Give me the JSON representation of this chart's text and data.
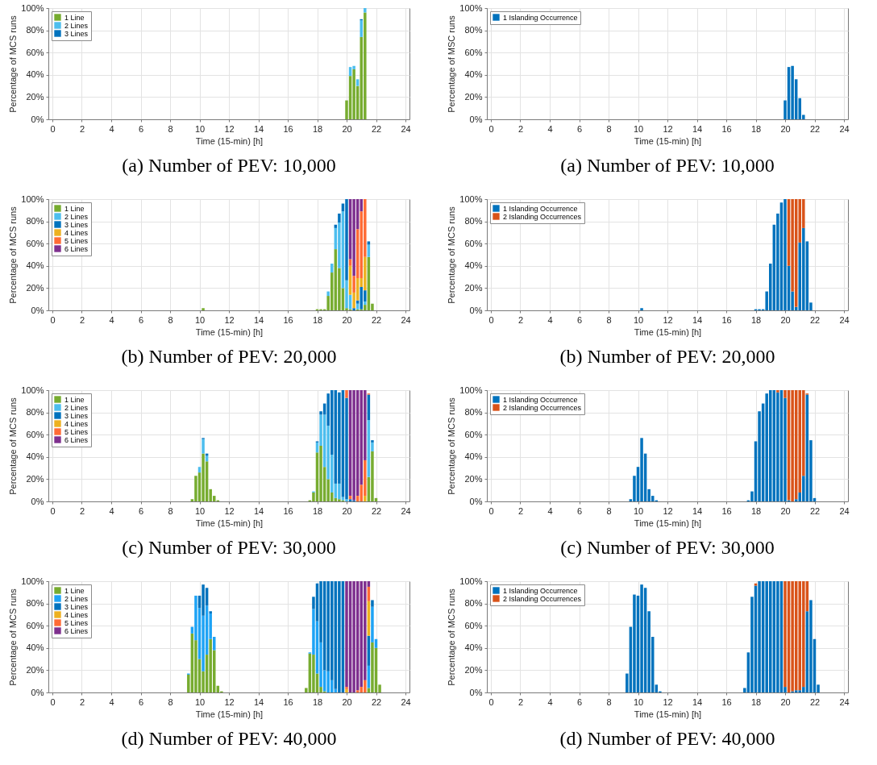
{
  "chart_data": [
    {
      "type": "bar",
      "title": "(a) Number of PEV: 10,000",
      "xlabel": "Time (15-min) [h]",
      "ylabel": "Percentage of MCS runs",
      "stacked": true,
      "grid": true,
      "legend": "top left",
      "xlim": [
        0,
        24
      ],
      "xticks": [
        0,
        2,
        4,
        6,
        8,
        10,
        12,
        14,
        16,
        18,
        20,
        22,
        24
      ],
      "ylim": [
        0,
        100
      ],
      "yticks": [
        {
          "value": 0,
          "label": "0%"
        },
        {
          "value": 20,
          "label": "20%"
        },
        {
          "value": 40,
          "label": "40%"
        },
        {
          "value": 60,
          "label": "60%"
        },
        {
          "value": 80,
          "label": "80%"
        },
        {
          "value": 100,
          "label": "100%"
        }
      ],
      "x": [
        20,
        20.25,
        20.5,
        20.75,
        21,
        21.25
      ],
      "series": [
        {
          "name": "1 Line",
          "color": "#77ac30",
          "values": [
            17,
            39,
            45,
            30,
            74,
            96
          ]
        },
        {
          "name": "2 Lines",
          "color": "#4dbeee",
          "values": [
            null,
            8,
            3,
            6,
            15,
            4
          ]
        },
        {
          "name": "3 Lines",
          "color": "#0072bd",
          "values": [
            null,
            null,
            null,
            null,
            1,
            null
          ]
        }
      ]
    },
    {
      "type": "bar",
      "title": "(a) Number of PEV: 10,000",
      "xlabel": "Time (15-min) [h]",
      "ylabel": "Percentage of MSC runs",
      "stacked": true,
      "grid": true,
      "legend": "top left",
      "xlim": [
        0,
        24
      ],
      "xticks": [
        0,
        2,
        4,
        6,
        8,
        10,
        12,
        14,
        16,
        18,
        20,
        22,
        24
      ],
      "ylim": [
        0,
        100
      ],
      "yticks": [
        {
          "value": 0,
          "label": "0%"
        },
        {
          "value": 20,
          "label": "20%"
        },
        {
          "value": 40,
          "label": "40%"
        },
        {
          "value": 60,
          "label": "60%"
        },
        {
          "value": 80,
          "label": "80%"
        },
        {
          "value": 100,
          "label": "100%"
        }
      ],
      "x": [
        20,
        20.25,
        20.5,
        20.75,
        21,
        21.25
      ],
      "series": [
        {
          "name": "1 Islanding Occurrence",
          "color": "#0072bd",
          "values": [
            17,
            47,
            48,
            36,
            19,
            4
          ]
        }
      ]
    },
    {
      "type": "bar",
      "title": "(b) Number of PEV: 20,000",
      "xlabel": "Time (15-min) [h]",
      "ylabel": "Percentage of MCS runs",
      "stacked": true,
      "grid": true,
      "legend": "top left",
      "xlim": [
        0,
        24
      ],
      "xticks": [
        0,
        2,
        4,
        6,
        8,
        10,
        12,
        14,
        16,
        18,
        20,
        22,
        24
      ],
      "ylim": [
        0,
        100
      ],
      "yticks": [
        {
          "value": 0,
          "label": "0%"
        },
        {
          "value": 20,
          "label": "20%"
        },
        {
          "value": 40,
          "label": "40%"
        },
        {
          "value": 60,
          "label": "60%"
        },
        {
          "value": 80,
          "label": "80%"
        },
        {
          "value": 100,
          "label": "100%"
        }
      ],
      "x": [
        10.25,
        18,
        18.25,
        18.5,
        18.75,
        19,
        19.25,
        19.5,
        19.75,
        20,
        20.25,
        20.5,
        20.75,
        21,
        21.25,
        21.5,
        21.75
      ],
      "series": [
        {
          "name": "1 Line",
          "color": "#77ac30",
          "values": [
            2,
            1,
            1,
            1,
            13,
            34,
            55,
            38,
            20,
            2,
            1,
            null,
            1,
            1,
            5,
            48,
            6
          ]
        },
        {
          "name": "2 Lines",
          "color": "#4dbeee",
          "values": [
            null,
            null,
            null,
            null,
            4,
            8,
            19,
            41,
            69,
            25,
            13,
            null,
            5,
            null,
            3,
            11,
            null
          ]
        },
        {
          "name": "3 Lines",
          "color": "#0072bd",
          "values": [
            null,
            null,
            null,
            null,
            null,
            null,
            3,
            8,
            7,
            73,
            null,
            2,
            3,
            20,
            10,
            3,
            null
          ]
        },
        {
          "name": "4 Lines",
          "color": "#edb120",
          "values": [
            null,
            null,
            null,
            null,
            null,
            null,
            null,
            null,
            null,
            null,
            26,
            14,
            20,
            8,
            30,
            null,
            null
          ]
        },
        {
          "name": "5 Lines",
          "color": "#ff6b35",
          "values": [
            null,
            null,
            null,
            null,
            null,
            null,
            null,
            null,
            null,
            null,
            6,
            15,
            44,
            60,
            52,
            null,
            null
          ]
        },
        {
          "name": "6 Lines",
          "color": "#7e2f8e",
          "values": [
            null,
            null,
            null,
            null,
            null,
            null,
            null,
            null,
            null,
            null,
            54,
            69,
            27,
            11,
            null,
            null,
            null
          ]
        }
      ]
    },
    {
      "type": "bar",
      "title": "(b) Number of PEV: 20,000",
      "xlabel": "Time (15-min) [h]",
      "ylabel": "Percentage of MCS runs",
      "stacked": true,
      "grid": true,
      "legend": "top left",
      "xlim": [
        0,
        24
      ],
      "xticks": [
        0,
        2,
        4,
        6,
        8,
        10,
        12,
        14,
        16,
        18,
        20,
        22,
        24
      ],
      "ylim": [
        0,
        100
      ],
      "yticks": [
        {
          "value": 0,
          "label": "0%"
        },
        {
          "value": 20,
          "label": "20%"
        },
        {
          "value": 40,
          "label": "40%"
        },
        {
          "value": 60,
          "label": "60%"
        },
        {
          "value": 80,
          "label": "80%"
        },
        {
          "value": 100,
          "label": "100%"
        }
      ],
      "x": [
        10.25,
        18,
        18.25,
        18.5,
        18.75,
        19,
        19.25,
        19.5,
        19.75,
        20,
        20.25,
        20.5,
        20.75,
        21,
        21.25,
        21.5,
        21.75
      ],
      "series": [
        {
          "name": "1 Islanding Occurrence",
          "color": "#0072bd",
          "values": [
            2,
            1,
            1,
            1,
            17,
            42,
            77,
            87,
            97,
            100,
            40,
            17,
            3,
            61,
            74,
            62,
            7
          ]
        },
        {
          "name": "2 Islanding Occurrences",
          "color": "#d95319",
          "values": [
            null,
            null,
            null,
            null,
            null,
            null,
            null,
            null,
            null,
            null,
            60,
            83,
            97,
            39,
            26,
            null,
            null
          ]
        }
      ]
    },
    {
      "type": "bar",
      "title": "(c) Number of PEV: 30,000",
      "xlabel": "Time (15-min) [h]",
      "ylabel": "Percentage of MCS runs",
      "stacked": true,
      "grid": true,
      "legend": "top left",
      "xlim": [
        0,
        24
      ],
      "xticks": [
        0,
        2,
        4,
        6,
        8,
        10,
        12,
        14,
        16,
        18,
        20,
        22,
        24
      ],
      "ylim": [
        0,
        100
      ],
      "yticks": [
        {
          "value": 0,
          "label": "0%"
        },
        {
          "value": 20,
          "label": "20%"
        },
        {
          "value": 40,
          "label": "40%"
        },
        {
          "value": 60,
          "label": "60%"
        },
        {
          "value": 80,
          "label": "80%"
        },
        {
          "value": 100,
          "label": "100%"
        }
      ],
      "x": [
        9.5,
        9.75,
        10,
        10.25,
        10.5,
        10.75,
        11,
        11.25,
        17.5,
        17.75,
        18,
        18.25,
        18.5,
        18.75,
        19,
        19.25,
        19.5,
        19.75,
        20,
        20.25,
        20.5,
        20.75,
        21,
        21.25,
        21.5,
        21.75,
        22
      ],
      "series": [
        {
          "name": "1 Line",
          "color": "#77ac30",
          "values": [
            2,
            23,
            26,
            43,
            36,
            11,
            5,
            1,
            1,
            8,
            44,
            50,
            31,
            20,
            8,
            3,
            2,
            1,
            null,
            null,
            null,
            null,
            null,
            null,
            22,
            45,
            3
          ]
        },
        {
          "name": "2 Lines",
          "color": "#4dbeee",
          "values": [
            null,
            null,
            5,
            13,
            5,
            null,
            null,
            null,
            null,
            1,
            9,
            28,
            47,
            48,
            34,
            13,
            14,
            3,
            2,
            null,
            null,
            null,
            null,
            null,
            51,
            8,
            null
          ]
        },
        {
          "name": "3 Lines",
          "color": "#0072bd",
          "values": [
            null,
            null,
            null,
            1,
            2,
            null,
            null,
            null,
            null,
            null,
            1,
            3,
            10,
            29,
            58,
            84,
            82,
            96,
            91,
            2,
            1,
            null,
            null,
            null,
            23,
            2,
            null
          ]
        },
        {
          "name": "4 Lines",
          "color": "#edb120",
          "values": [
            null,
            null,
            null,
            null,
            null,
            null,
            null,
            null,
            null,
            null,
            null,
            null,
            null,
            null,
            null,
            null,
            null,
            null,
            null,
            null,
            null,
            null,
            null,
            5,
            null,
            null,
            null
          ]
        },
        {
          "name": "5 Lines",
          "color": "#ff6b35",
          "values": [
            null,
            null,
            null,
            null,
            null,
            null,
            null,
            null,
            null,
            null,
            null,
            null,
            null,
            null,
            null,
            null,
            null,
            null,
            7,
            3,
            null,
            5,
            15,
            32,
            1,
            null,
            null
          ]
        },
        {
          "name": "6 Lines",
          "color": "#7e2f8e",
          "values": [
            null,
            null,
            null,
            null,
            null,
            null,
            null,
            null,
            null,
            null,
            null,
            null,
            null,
            null,
            null,
            null,
            null,
            null,
            null,
            95,
            99,
            95,
            85,
            63,
            null,
            null,
            null
          ]
        }
      ]
    },
    {
      "type": "bar",
      "title": "(c) Number of PEV: 30,000",
      "xlabel": "Time (15-min) [h]",
      "ylabel": "Percentage of MCS runs",
      "stacked": true,
      "grid": true,
      "legend": "top left",
      "xlim": [
        0,
        24
      ],
      "xticks": [
        0,
        2,
        4,
        6,
        8,
        10,
        12,
        14,
        16,
        18,
        20,
        22,
        24
      ],
      "ylim": [
        0,
        100
      ],
      "yticks": [
        {
          "value": 0,
          "label": "0%"
        },
        {
          "value": 20,
          "label": "20%"
        },
        {
          "value": 40,
          "label": "40%"
        },
        {
          "value": 60,
          "label": "60%"
        },
        {
          "value": 80,
          "label": "80%"
        },
        {
          "value": 100,
          "label": "100%"
        }
      ],
      "x": [
        9.5,
        9.75,
        10,
        10.25,
        10.5,
        10.75,
        11,
        11.25,
        17.5,
        17.75,
        18,
        18.25,
        18.5,
        18.75,
        19,
        19.25,
        19.5,
        19.75,
        20,
        20.25,
        20.5,
        20.75,
        21,
        21.25,
        21.5,
        21.75,
        22
      ],
      "series": [
        {
          "name": "1 Islanding Occurrence",
          "color": "#0072bd",
          "values": [
            2,
            23,
            31,
            57,
            43,
            11,
            5,
            1,
            1,
            9,
            54,
            81,
            88,
            97,
            100,
            100,
            98,
            100,
            93,
            1,
            null,
            2,
            8,
            23,
            96,
            55,
            3
          ]
        },
        {
          "name": "2 Islanding Occurrences",
          "color": "#d95319",
          "values": [
            null,
            null,
            null,
            null,
            null,
            null,
            null,
            null,
            null,
            null,
            null,
            null,
            null,
            null,
            null,
            null,
            2,
            null,
            7,
            99,
            100,
            98,
            92,
            77,
            1,
            null,
            null
          ]
        }
      ]
    },
    {
      "type": "bar",
      "title": "(d) Number of PEV: 40,000",
      "xlabel": "Time (15-min) [h]",
      "ylabel": "Percentage of MCS runs",
      "stacked": true,
      "grid": true,
      "legend": "top left",
      "xlim": [
        0,
        24
      ],
      "xticks": [
        0,
        2,
        4,
        6,
        8,
        10,
        12,
        14,
        16,
        18,
        20,
        22,
        24
      ],
      "ylim": [
        0,
        100
      ],
      "yticks": [
        {
          "value": 0,
          "label": "0%"
        },
        {
          "value": 20,
          "label": "20%"
        },
        {
          "value": 40,
          "label": "40%"
        },
        {
          "value": 60,
          "label": "60%"
        },
        {
          "value": 80,
          "label": "80%"
        },
        {
          "value": 100,
          "label": "100%"
        }
      ],
      "x": [
        9.25,
        9.5,
        9.75,
        10,
        10.25,
        10.5,
        10.75,
        11,
        11.25,
        11.5,
        17.25,
        17.5,
        17.75,
        18,
        18.25,
        18.5,
        18.75,
        19,
        19.25,
        19.5,
        19.75,
        20,
        20.25,
        20.5,
        20.75,
        21,
        21.25,
        21.5,
        21.75,
        22,
        22.25
      ],
      "series": [
        {
          "name": "1 Line",
          "color": "#77ac30",
          "values": [
            16,
            53,
            47,
            30,
            19,
            34,
            48,
            38,
            6,
            1,
            4,
            35,
            34,
            17,
            5,
            1,
            null,
            null,
            null,
            null,
            null,
            null,
            null,
            null,
            null,
            null,
            null,
            4,
            45,
            40,
            7
          ]
        },
        {
          "name": "2 Lines",
          "color": "#1ea3f5",
          "values": [
            1,
            6,
            40,
            46,
            50,
            44,
            23,
            12,
            null,
            null,
            null,
            1,
            41,
            47,
            40,
            19,
            19,
            11,
            3,
            null,
            null,
            null,
            null,
            null,
            null,
            null,
            null,
            20,
            32,
            8,
            null
          ]
        },
        {
          "name": "3 Lines",
          "color": "#0072bd",
          "values": [
            null,
            null,
            null,
            11,
            28,
            16,
            2,
            null,
            null,
            null,
            null,
            null,
            11,
            34,
            55,
            80,
            81,
            89,
            97,
            100,
            100,
            null,
            null,
            null,
            null,
            null,
            null,
            27,
            6,
            null,
            null
          ]
        },
        {
          "name": "4 Lines",
          "color": "#edb120",
          "values": [
            null,
            null,
            null,
            null,
            null,
            null,
            null,
            null,
            null,
            null,
            null,
            null,
            null,
            null,
            null,
            null,
            null,
            null,
            null,
            null,
            null,
            3,
            null,
            null,
            null,
            null,
            null,
            31,
            null,
            null,
            null
          ]
        },
        {
          "name": "5 Lines",
          "color": "#ff6b35",
          "values": [
            null,
            null,
            null,
            null,
            null,
            null,
            null,
            null,
            null,
            null,
            null,
            null,
            null,
            null,
            null,
            null,
            null,
            null,
            null,
            null,
            null,
            2,
            null,
            null,
            2,
            5,
            11,
            13,
            null,
            null,
            null
          ]
        },
        {
          "name": "6 Lines",
          "color": "#7e2f8e",
          "values": [
            null,
            null,
            null,
            null,
            null,
            null,
            null,
            null,
            null,
            null,
            null,
            null,
            null,
            null,
            null,
            null,
            null,
            null,
            null,
            null,
            null,
            95,
            100,
            100,
            98,
            95,
            89,
            5,
            null,
            null,
            null
          ]
        }
      ]
    },
    {
      "type": "bar",
      "title": "(d) Number of PEV: 40,000",
      "xlabel": "Time (15-min) [h]",
      "ylabel": "Percentage of MCS runs",
      "stacked": true,
      "grid": true,
      "legend": "top left",
      "xlim": [
        0,
        24
      ],
      "xticks": [
        0,
        2,
        4,
        6,
        8,
        10,
        12,
        14,
        16,
        18,
        20,
        22,
        24
      ],
      "ylim": [
        0,
        100
      ],
      "yticks": [
        {
          "value": 0,
          "label": "0%"
        },
        {
          "value": 20,
          "label": "20%"
        },
        {
          "value": 40,
          "label": "40%"
        },
        {
          "value": 60,
          "label": "60%"
        },
        {
          "value": 80,
          "label": "80%"
        },
        {
          "value": 100,
          "label": "100%"
        }
      ],
      "x": [
        9.25,
        9.5,
        9.75,
        10,
        10.25,
        10.5,
        10.75,
        11,
        11.25,
        11.5,
        17.25,
        17.5,
        17.75,
        18,
        18.25,
        18.5,
        18.75,
        19,
        19.25,
        19.5,
        19.75,
        20,
        20.25,
        20.5,
        20.75,
        21,
        21.25,
        21.5,
        21.75,
        22,
        22.25
      ],
      "series": [
        {
          "name": "1 Islanding Occurrence",
          "color": "#0072bd",
          "values": [
            17,
            59,
            88,
            87,
            97,
            94,
            73,
            50,
            7,
            1,
            4,
            36,
            86,
            96,
            100,
            100,
            100,
            100,
            100,
            100,
            100,
            5,
            null,
            1,
            2,
            2,
            5,
            73,
            83,
            48,
            7
          ]
        },
        {
          "name": "2 Islanding Occurrences",
          "color": "#d95319",
          "values": [
            null,
            null,
            null,
            null,
            null,
            null,
            null,
            null,
            null,
            null,
            null,
            null,
            null,
            2,
            null,
            null,
            null,
            null,
            null,
            null,
            null,
            95,
            100,
            99,
            98,
            98,
            95,
            27,
            null,
            null,
            null
          ]
        }
      ]
    }
  ]
}
